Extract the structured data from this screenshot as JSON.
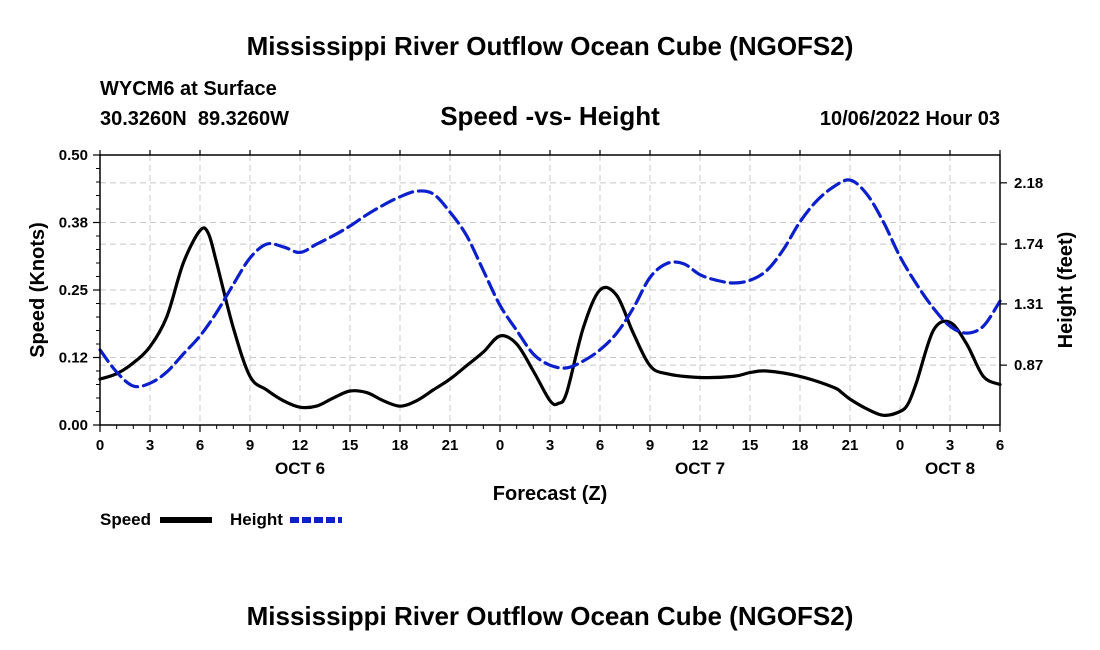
{
  "page": {
    "top_title": "Mississippi River Outflow Ocean Cube (NGOFS2)",
    "bottom_title": "Mississippi River Outflow Ocean Cube (NGOFS2)",
    "station": "WYCM6 at Surface",
    "coords": "30.3260N  89.3260W",
    "plot_title": "Speed -vs- Height",
    "date": "10/06/2022 Hour 03"
  },
  "chart_data": {
    "type": "line",
    "title": "Speed -vs- Height",
    "xlabel": "Forecast (Z)",
    "ylabel": "Speed (Knots)",
    "y2label": "Height (feet)",
    "xlim": [
      0,
      54
    ],
    "ylim": [
      0,
      0.5
    ],
    "y2lim": [
      0.44,
      2.38
    ],
    "x_ticks": [
      0,
      3,
      6,
      9,
      12,
      15,
      18,
      21,
      24,
      27,
      30,
      33,
      36,
      39,
      42,
      45,
      48,
      51,
      54
    ],
    "x_tick_labels": [
      "0",
      "3",
      "6",
      "9",
      "12",
      "15",
      "18",
      "21",
      "0",
      "3",
      "6",
      "9",
      "12",
      "15",
      "18",
      "21",
      "0",
      "3",
      "6"
    ],
    "day_labels": [
      {
        "x": 12,
        "label": "OCT 6"
      },
      {
        "x": 36,
        "label": "OCT 7"
      },
      {
        "x": 51,
        "label": "OCT 8"
      }
    ],
    "y_ticks": [
      0,
      0.125,
      0.25,
      0.375,
      0.5
    ],
    "y_tick_labels": [
      "0.00",
      "0.12",
      "0.25",
      "0.38",
      "0.50"
    ],
    "y2_ticks": [
      0.87,
      1.31,
      1.74,
      2.18
    ],
    "y2_tick_labels": [
      "0.87",
      "1.31",
      "1.74",
      "2.18"
    ],
    "grid": true,
    "legend_position": "bottom-left",
    "series": [
      {
        "name": "Speed",
        "axis": "left",
        "color": "#000000",
        "style": "solid",
        "x": [
          0,
          1,
          2,
          3,
          4,
          5,
          6,
          6.5,
          7,
          8,
          9,
          10,
          11,
          12,
          13,
          14,
          15,
          16,
          17,
          18,
          19,
          20,
          21,
          22,
          23,
          24,
          25,
          26,
          27,
          27.5,
          28,
          29,
          30,
          31,
          32,
          33,
          34,
          36,
          38,
          39,
          40,
          42,
          44,
          44.5,
          45,
          46,
          47,
          48,
          48.5,
          49,
          50,
          51,
          52,
          53,
          54
        ],
        "values": [
          0.085,
          0.095,
          0.115,
          0.145,
          0.2,
          0.3,
          0.36,
          0.355,
          0.3,
          0.18,
          0.09,
          0.065,
          0.045,
          0.033,
          0.035,
          0.05,
          0.063,
          0.06,
          0.045,
          0.035,
          0.045,
          0.065,
          0.085,
          0.11,
          0.135,
          0.165,
          0.15,
          0.1,
          0.045,
          0.04,
          0.06,
          0.18,
          0.25,
          0.24,
          0.17,
          0.11,
          0.095,
          0.088,
          0.09,
          0.097,
          0.1,
          0.09,
          0.07,
          0.06,
          0.048,
          0.03,
          0.018,
          0.025,
          0.04,
          0.08,
          0.175,
          0.19,
          0.15,
          0.09,
          0.075
        ]
      },
      {
        "name": "Height",
        "axis": "right",
        "color": "#0b1fcc",
        "style": "dashed",
        "x": [
          0,
          1,
          2,
          3,
          4,
          5,
          6,
          7,
          8,
          9,
          10,
          11,
          12,
          13,
          14,
          15,
          16,
          17,
          18,
          19,
          20,
          21,
          22,
          23,
          24,
          25,
          26,
          27,
          28,
          29,
          30,
          31,
          32,
          33,
          34,
          35,
          36,
          37,
          38,
          39,
          40,
          41,
          42,
          43,
          44,
          45,
          46,
          47,
          48,
          49,
          50,
          51,
          52,
          53,
          54
        ],
        "values": [
          0.98,
          0.82,
          0.72,
          0.74,
          0.82,
          0.95,
          1.08,
          1.25,
          1.45,
          1.64,
          1.74,
          1.72,
          1.68,
          1.74,
          1.8,
          1.87,
          1.95,
          2.02,
          2.08,
          2.12,
          2.1,
          1.97,
          1.8,
          1.55,
          1.3,
          1.12,
          0.95,
          0.87,
          0.85,
          0.9,
          0.98,
          1.1,
          1.28,
          1.5,
          1.6,
          1.6,
          1.52,
          1.48,
          1.46,
          1.48,
          1.55,
          1.7,
          1.9,
          2.05,
          2.15,
          2.2,
          2.1,
          1.9,
          1.65,
          1.45,
          1.28,
          1.15,
          1.1,
          1.15,
          1.33
        ]
      }
    ]
  }
}
